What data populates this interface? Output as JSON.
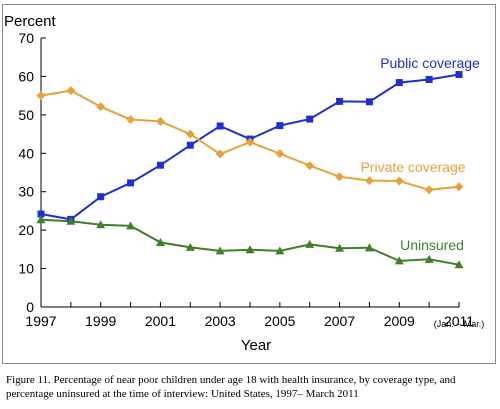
{
  "chart_data": {
    "type": "line",
    "ylabel": "Percent",
    "xlabel": "Year",
    "ylim": [
      0,
      70
    ],
    "yticks": [
      0,
      10,
      20,
      30,
      40,
      50,
      60,
      70
    ],
    "xlim": [
      1997,
      2011
    ],
    "xtick_labels": [
      "1997",
      "1999",
      "2001",
      "2003",
      "2005",
      "2007",
      "2009",
      "2011"
    ],
    "xtick_note": "(Jan. – Mar.)",
    "x": [
      1997,
      1998,
      1999,
      2000,
      2001,
      2002,
      2003,
      2004,
      2005,
      2006,
      2007,
      2008,
      2009,
      2010,
      2011
    ],
    "series": [
      {
        "name": "Public coverage",
        "color": "#1f2fd0",
        "marker": "square",
        "values": [
          24.2,
          22.8,
          28.7,
          32.3,
          36.9,
          42.1,
          47.1,
          43.7,
          47.2,
          48.9,
          53.5,
          53.4,
          58.4,
          59.2,
          60.5
        ]
      },
      {
        "name": "Private coverage",
        "color": "#e8a23c",
        "marker": "diamond",
        "values": [
          55.0,
          56.3,
          52.1,
          48.8,
          48.3,
          45.0,
          39.8,
          42.9,
          39.9,
          36.8,
          33.9,
          32.9,
          32.8,
          30.5,
          31.3
        ]
      },
      {
        "name": "Uninsured",
        "color": "#3f7f2a",
        "marker": "triangle",
        "values": [
          22.7,
          22.3,
          21.4,
          21.1,
          16.8,
          15.5,
          14.6,
          14.9,
          14.6,
          16.3,
          15.3,
          15.4,
          12.0,
          12.4,
          11.0
        ]
      }
    ]
  },
  "caption": "Figure 11. Percentage of near poor children under age 18 with health insurance, by coverage type, and percentage uninsured at the time of interview: United States, 1997– March 2011"
}
